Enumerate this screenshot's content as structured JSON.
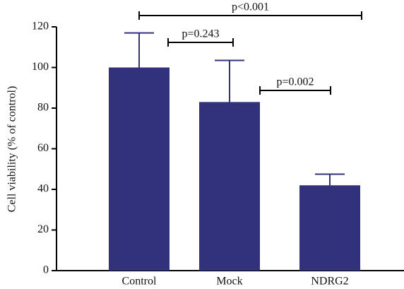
{
  "chart_data": {
    "type": "bar",
    "y_label": "Cell viability (% of control)",
    "categories": [
      "Control",
      "Mock",
      "NDRG2"
    ],
    "values": [
      100,
      83,
      42
    ],
    "errors": [
      17,
      20.5,
      5.5
    ],
    "color": "#31317c",
    "ylim": [
      0,
      120
    ],
    "yticks": [
      0,
      20,
      40,
      60,
      80,
      100,
      120
    ],
    "annotations": [
      "p<0.001",
      "p=0.243",
      "p=0.002"
    ]
  }
}
